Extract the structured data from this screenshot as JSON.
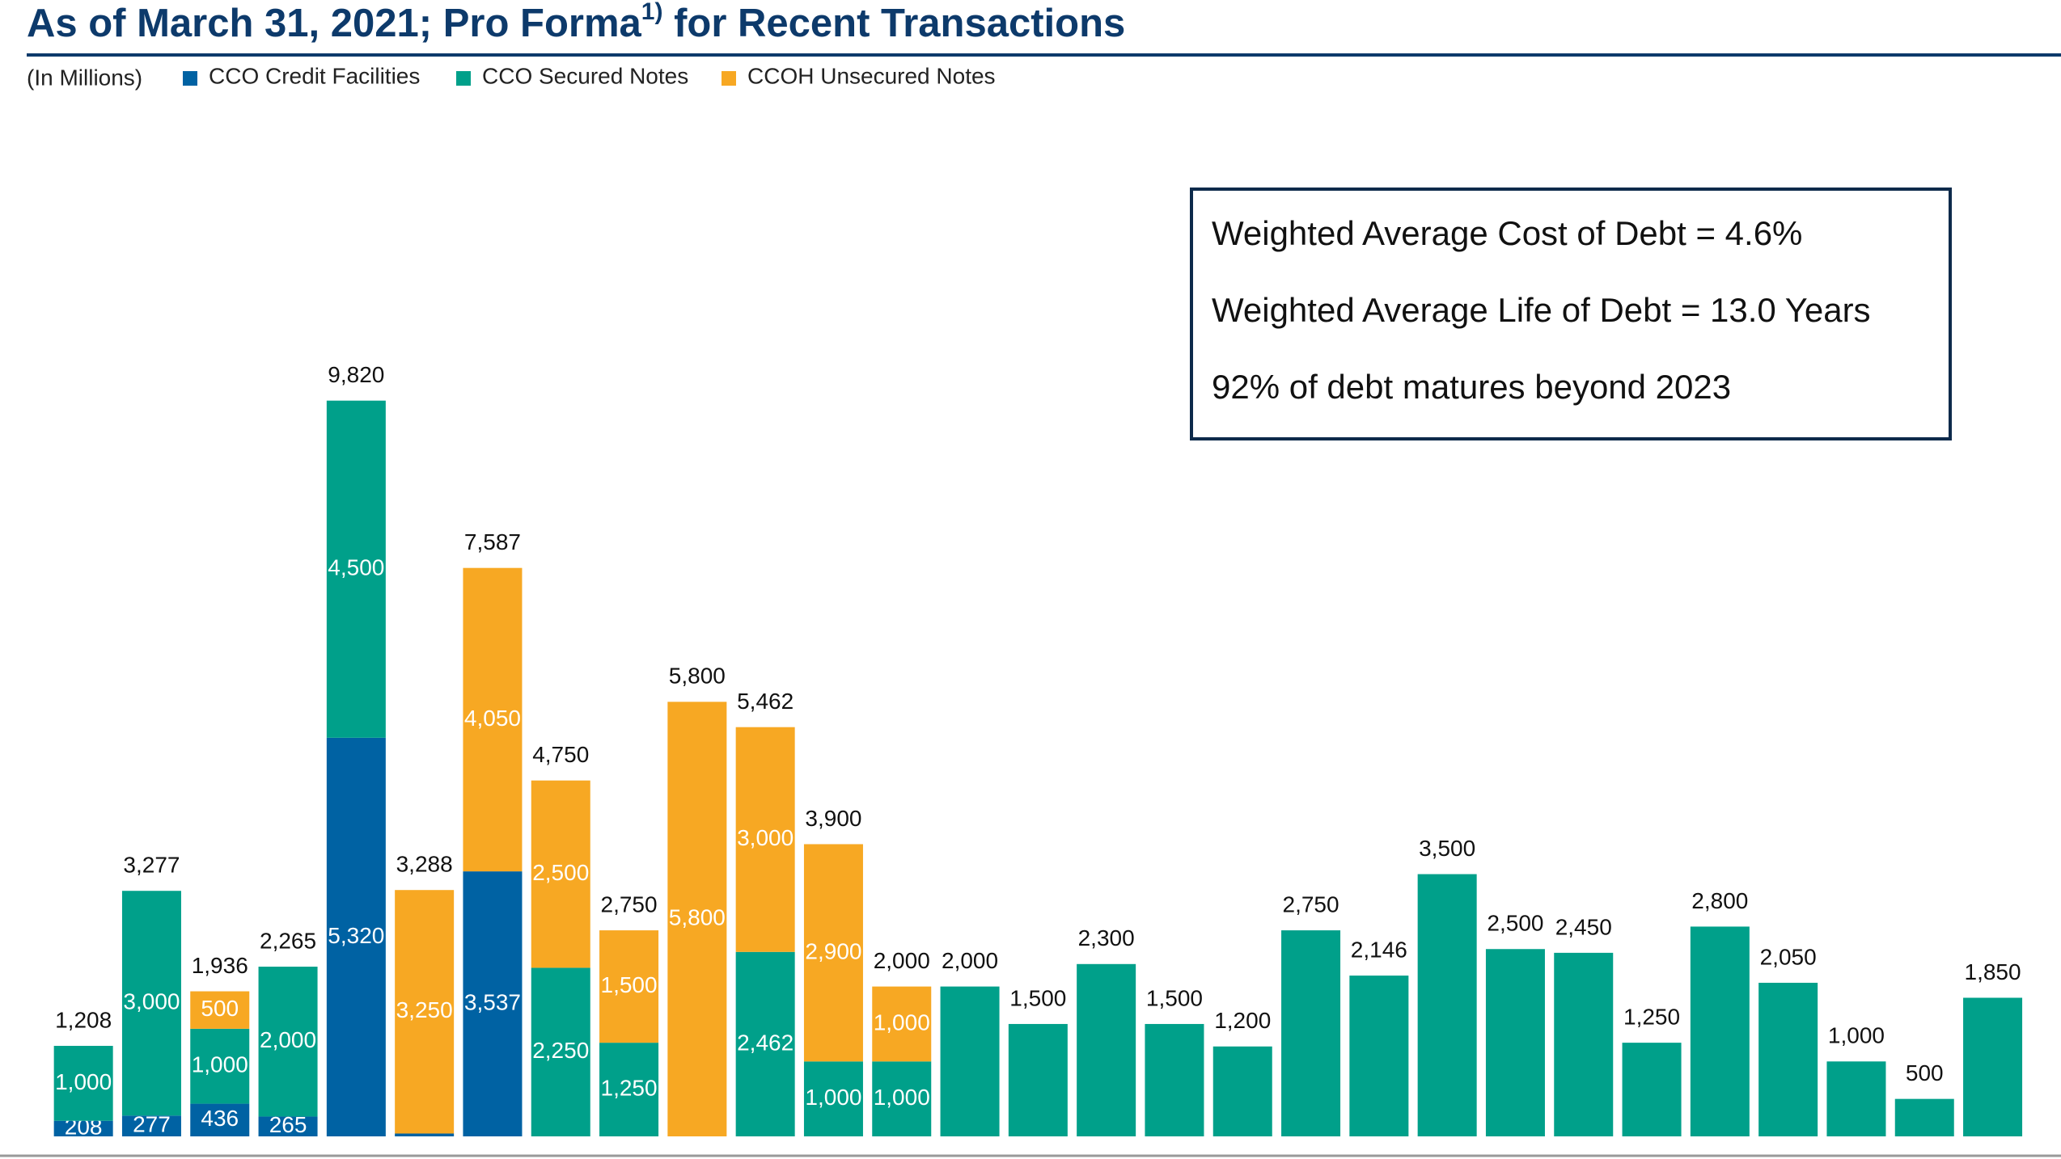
{
  "chart_data": {
    "type": "stacked_bar",
    "title": "As of March 31, 2021; Pro Forma",
    "title_sup": "1)",
    "title_rest": " for Recent Transactions",
    "unit_note": "(In Millions)",
    "annotations": [
      "Weighted Average Cost of Debt = 4.6%",
      "Weighted Average Life of Debt = 13.0 Years",
      "92% of debt matures beyond 2023"
    ],
    "categories": [
      null,
      null,
      null,
      null,
      null,
      null,
      null,
      null,
      null,
      null,
      null,
      null,
      null,
      null,
      null,
      null,
      null,
      null,
      null,
      null,
      null,
      null,
      null,
      null,
      null,
      null,
      null,
      null,
      null
    ],
    "ylim": [
      0,
      10000
    ],
    "series": [
      {
        "name": "CCO Credit Facilities",
        "color": "#0062a3",
        "values": [
          208,
          277,
          436,
          265,
          5320,
          38,
          3537,
          null,
          null,
          null,
          null,
          null,
          null,
          null,
          null,
          null,
          null,
          null,
          null,
          null,
          null,
          null,
          null,
          null,
          null,
          null,
          null,
          null,
          null
        ],
        "value_labels": [
          "208",
          "277",
          "436",
          "265",
          "5,320",
          null,
          "3,537",
          null,
          null,
          null,
          null,
          null,
          null,
          null,
          null,
          null,
          null,
          null,
          null,
          null,
          null,
          null,
          null,
          null,
          null,
          null,
          null,
          null,
          null
        ]
      },
      {
        "name": "CCO Secured Notes",
        "color": "#00a08a",
        "values": [
          1000,
          3000,
          1000,
          2000,
          4500,
          null,
          null,
          2250,
          1250,
          null,
          2462,
          1000,
          1000,
          2000,
          1500,
          2300,
          1500,
          1200,
          2750,
          2146,
          3500,
          2500,
          2450,
          1250,
          2800,
          2050,
          1000,
          500,
          1850
        ],
        "value_labels": [
          "1,000",
          "3,000",
          "1,000",
          "2,000",
          "4,500",
          null,
          null,
          "2,250",
          "1,250",
          null,
          "2,462",
          "1,000",
          "1,000",
          null,
          null,
          null,
          null,
          null,
          null,
          null,
          null,
          null,
          null,
          null,
          null,
          null,
          null,
          null,
          null
        ]
      },
      {
        "name": "CCOH Unsecured Notes",
        "color": "#f7a823",
        "values": [
          null,
          null,
          500,
          null,
          null,
          3250,
          4050,
          2500,
          1500,
          5800,
          3000,
          2900,
          1000,
          null,
          null,
          null,
          null,
          null,
          null,
          null,
          null,
          null,
          null,
          null,
          null,
          null,
          null,
          null,
          null
        ],
        "value_labels": [
          null,
          null,
          "500",
          null,
          null,
          "3,250",
          "4,050",
          "2,500",
          "1,500",
          "5,800",
          "3,000",
          "2,900",
          "1,000",
          null,
          null,
          null,
          null,
          null,
          null,
          null,
          null,
          null,
          null,
          null,
          null,
          null,
          null,
          null,
          null
        ]
      }
    ],
    "totals": [
      1208,
      3277,
      1936,
      2265,
      9820,
      3288,
      7587,
      4750,
      2750,
      5800,
      5462,
      3900,
      2000,
      2000,
      1500,
      2300,
      1500,
      1200,
      2750,
      2146,
      3500,
      2500,
      2450,
      1250,
      2800,
      2050,
      1000,
      500,
      1850
    ],
    "total_labels": [
      "1,208",
      "3,277",
      "1,936",
      "2,265",
      "9,820",
      "3,288",
      "7,587",
      "4,750",
      "2,750",
      "5,800",
      "5,462",
      "3,900",
      "2,000",
      "2,000",
      "1,500",
      "2,300",
      "1,500",
      "1,200",
      "2,750",
      "2,146",
      "3,500",
      "2,500",
      "2,450",
      "1,250",
      "2,800",
      "2,050",
      "1,000",
      "500",
      "1,850"
    ]
  }
}
